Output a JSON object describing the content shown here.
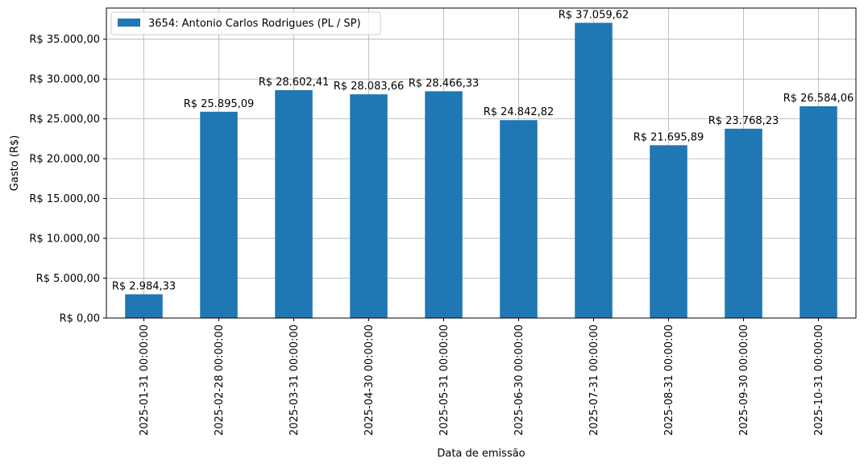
{
  "chart_data": {
    "type": "bar",
    "title": "",
    "xlabel": "Data de emissão",
    "ylabel": "Gasto (R$)",
    "categories": [
      "2025-01-31 00:00:00",
      "2025-02-28 00:00:00",
      "2025-03-31 00:00:00",
      "2025-04-30 00:00:00",
      "2025-05-31 00:00:00",
      "2025-06-30 00:00:00",
      "2025-07-31 00:00:00",
      "2025-08-31 00:00:00",
      "2025-09-30 00:00:00",
      "2025-10-31 00:00:00"
    ],
    "series": [
      {
        "name": "3654: Antonio Carlos Rodrigues (PL / SP)",
        "color": "#1f77b4",
        "values": [
          2984.33,
          25895.09,
          28602.41,
          28083.66,
          28466.33,
          24842.82,
          37059.62,
          21695.89,
          23768.23,
          26584.06
        ],
        "labels": [
          "R$ 2.984,33",
          "R$ 25.895,09",
          "R$ 28.602,41",
          "R$ 28.083,66",
          "R$ 28.466,33",
          "R$ 24.842,82",
          "R$ 37.059,62",
          "R$ 21.695,89",
          "R$ 23.768,23",
          "R$ 26.584,06"
        ]
      }
    ],
    "ylim": [
      0,
      38912.6
    ],
    "yticks": [
      0,
      5000,
      10000,
      15000,
      20000,
      25000,
      30000,
      35000
    ],
    "ytick_labels": [
      "R$ 0,00",
      "R$ 5.000,00",
      "R$ 10.000,00",
      "R$ 15.000,00",
      "R$ 20.000,00",
      "R$ 25.000,00",
      "R$ 30.000,00",
      "R$ 35.000,00"
    ],
    "grid": true,
    "legend_position": "top-left"
  }
}
